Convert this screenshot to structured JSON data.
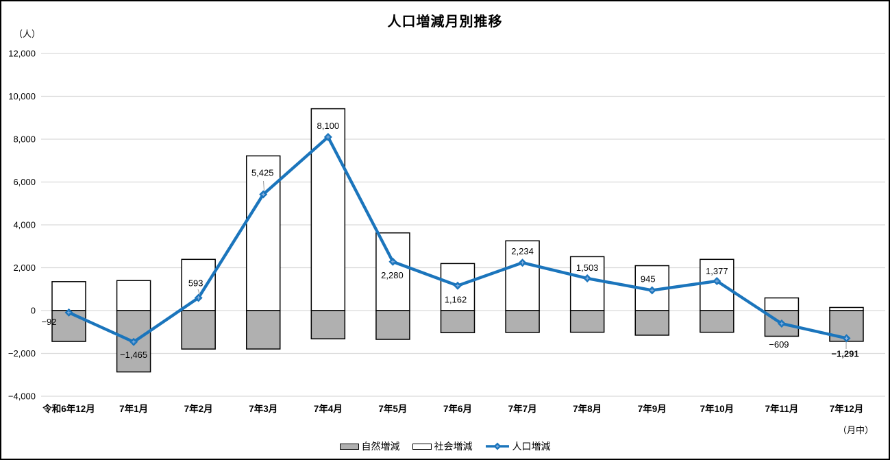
{
  "chart_data": {
    "type": "combo-bar-line",
    "title": "人口増減月別推移",
    "y_axis_unit": "（人）",
    "x_axis_unit": "（月中）",
    "categories": [
      "令和6年12月",
      "7年1月",
      "7年2月",
      "7年3月",
      "7年4月",
      "7年5月",
      "7年6月",
      "7年7月",
      "7年8月",
      "7年9月",
      "7年10月",
      "7年11月",
      "7年12月"
    ],
    "series": [
      {
        "name": "自然増減",
        "type": "bar",
        "fill": "#B0B0B0",
        "stroke": "#000000",
        "values_estimated_from_gridlines": true,
        "values": [
          -1442,
          -2865,
          -1797,
          -1795,
          -1320,
          -1345,
          -1033,
          -1021,
          -1012,
          -1150,
          -1013,
          -1199,
          -1436
        ]
      },
      {
        "name": "社会増減",
        "type": "bar",
        "fill": "#FFFFFF",
        "stroke": "#000000",
        "values_estimated_from_gridlines": true,
        "values": [
          1350,
          1400,
          2390,
          7220,
          9420,
          3625,
          2195,
          3255,
          2515,
          2095,
          2390,
          590,
          145
        ]
      },
      {
        "name": "人口増減",
        "type": "line",
        "color": "#1B75BC",
        "marker": "diamond",
        "values": [
          -92,
          -1465,
          593,
          5425,
          8100,
          2280,
          1162,
          2234,
          1503,
          945,
          1377,
          -609,
          -1291
        ],
        "data_labels": [
          "−92",
          "−1,465",
          "593",
          "5,425",
          "8,100",
          "2,280",
          "1,162",
          "2,234",
          "1,503",
          "945",
          "1,377",
          "−609",
          "−1,291"
        ],
        "emphasized_label_index": 12
      }
    ],
    "y_axis": {
      "min": -4000,
      "max": 12000,
      "tick_step": 2000,
      "tick_labels": [
        "12,000",
        "10,000",
        "8,000",
        "6,000",
        "4,000",
        "2,000",
        "0",
        "−2,000",
        "−4,000"
      ]
    },
    "gridlines": true,
    "grid_color": "#D9D9D9",
    "legend_position": "bottom"
  }
}
